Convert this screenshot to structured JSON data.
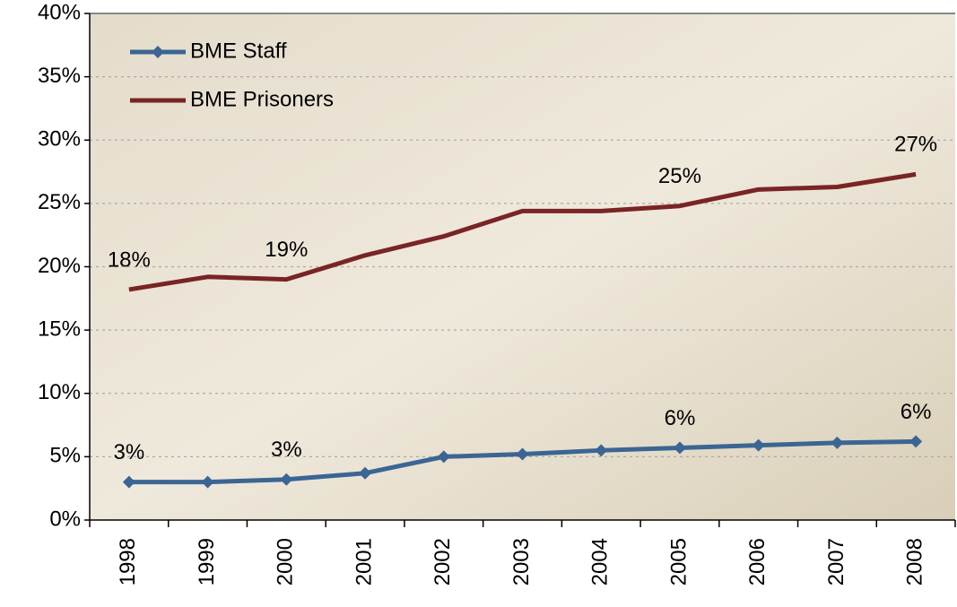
{
  "chart_data": {
    "type": "line",
    "categories": [
      "1998",
      "1999",
      "2000",
      "2001",
      "2002",
      "2003",
      "2004",
      "2005",
      "2006",
      "2007",
      "2008"
    ],
    "series": [
      {
        "name": "BME Staff",
        "color": "#3b6593",
        "marker": "diamond",
        "values": [
          3.0,
          3.0,
          3.2,
          3.7,
          5.0,
          5.2,
          5.5,
          5.7,
          5.9,
          6.1,
          6.2
        ],
        "value_labels": [
          "3%",
          null,
          "3%",
          null,
          null,
          null,
          null,
          "6%",
          null,
          null,
          "6%"
        ]
      },
      {
        "name": "BME Prisoners",
        "color": "#7a2424",
        "values": [
          18.2,
          19.2,
          19.0,
          20.9,
          22.4,
          24.4,
          24.4,
          24.8,
          26.1,
          26.3,
          27.3
        ],
        "value_labels": [
          "18%",
          null,
          "19%",
          null,
          null,
          null,
          null,
          "25%",
          null,
          null,
          "27%"
        ]
      }
    ],
    "ylim": [
      0,
      40
    ],
    "yticks": [
      {
        "value": 0,
        "label": "0%"
      },
      {
        "value": 5,
        "label": "5%"
      },
      {
        "value": 10,
        "label": "10%"
      },
      {
        "value": 15,
        "label": "15%"
      },
      {
        "value": 20,
        "label": "20%"
      },
      {
        "value": 25,
        "label": "25%"
      },
      {
        "value": 30,
        "label": "30%"
      },
      {
        "value": 35,
        "label": "35%"
      },
      {
        "value": 40,
        "label": "40%"
      }
    ],
    "grid": true,
    "legend": "upper left"
  }
}
